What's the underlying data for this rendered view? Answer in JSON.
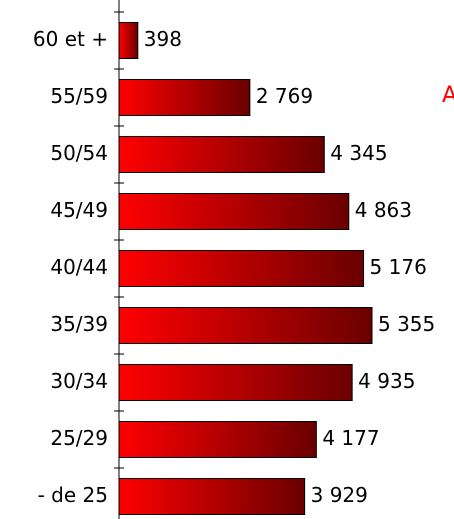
{
  "chart_data": {
    "type": "barh",
    "categories": [
      "60 et +",
      "55/59",
      "50/54",
      "45/49",
      "40/44",
      "35/39",
      "30/34",
      "25/29",
      "- de 25"
    ],
    "values": [
      398,
      2769,
      4345,
      4863,
      5176,
      5355,
      4935,
      4177,
      3929
    ],
    "value_labels": [
      "398",
      "2 769",
      "4 345",
      "4 863",
      "5 176",
      "5 355",
      "4 935",
      "4 177",
      "3 929"
    ],
    "color": [
      "#ff0000",
      "#6a0000"
    ],
    "annotation": "A"
  }
}
